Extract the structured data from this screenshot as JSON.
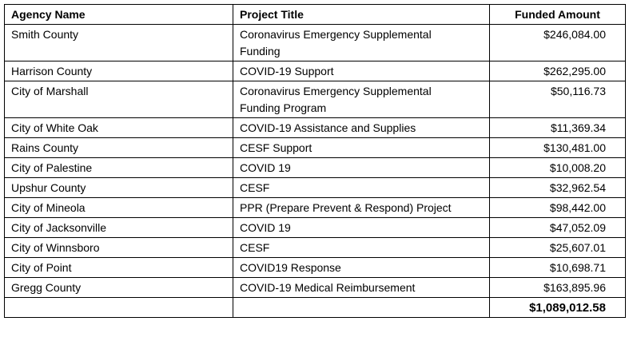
{
  "table": {
    "columns": [
      "Agency Name",
      "Project Title",
      "Funded Amount"
    ],
    "rows": [
      [
        "Smith County",
        "Coronavirus Emergency Supplemental Funding",
        "$246,084.00"
      ],
      [
        "Harrison County",
        "COVID-19 Support",
        "$262,295.00"
      ],
      [
        "City of Marshall",
        "Coronavirus Emergency Supplemental Funding Program",
        "$50,116.73"
      ],
      [
        "City of White Oak",
        "COVID-19 Assistance and Supplies",
        "$11,369.34"
      ],
      [
        "Rains County",
        "CESF Support",
        "$130,481.00"
      ],
      [
        "City of Palestine",
        "COVID 19",
        "$10,008.20"
      ],
      [
        "Upshur County",
        "CESF",
        "$32,962.54"
      ],
      [
        "City of Mineola",
        "PPR (Prepare Prevent & Respond) Project",
        "$98,442.00"
      ],
      [
        "City of Jacksonville",
        "COVID 19",
        "$47,052.09"
      ],
      [
        "City of Winnsboro",
        "CESF",
        "$25,607.01"
      ],
      [
        "City of Point",
        "COVID19 Response",
        "$10,698.71"
      ],
      [
        "Gregg County",
        "COVID-19 Medical Reimbursement",
        "$163,895.96"
      ]
    ],
    "total": "$1,089,012.58"
  }
}
